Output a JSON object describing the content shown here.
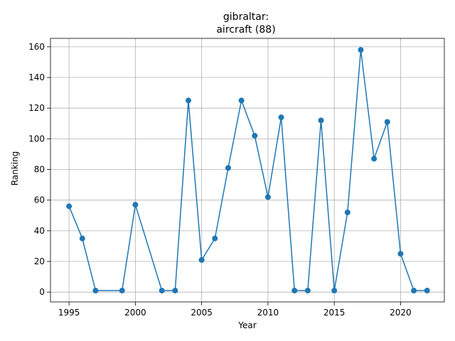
{
  "chart_data": {
    "type": "line",
    "title_line1": "gibraltar:",
    "title_line2": "aircraft (88)",
    "xlabel": "Year",
    "ylabel": "Ranking",
    "xlim": [
      1993.6,
      2023.3
    ],
    "ylim": [
      -6.4,
      165.5
    ],
    "xticks": [
      1995,
      2000,
      2005,
      2010,
      2015,
      2020
    ],
    "yticks": [
      0,
      20,
      40,
      60,
      80,
      100,
      120,
      140,
      160
    ],
    "grid": true,
    "marker": "circle",
    "color": "#1f77b4",
    "series": [
      {
        "x": [
          1995,
          1996,
          1997,
          1999,
          2000,
          2002,
          2003,
          2004,
          2005,
          2006,
          2007,
          2008,
          2009,
          2010,
          2011,
          2012,
          2013,
          2014,
          2015,
          2016,
          2017,
          2018,
          2019,
          2020,
          2021,
          2022
        ],
        "y": [
          56,
          35,
          1,
          1,
          57,
          1,
          1,
          125,
          21,
          35,
          81,
          125,
          102,
          62,
          114,
          1,
          1,
          112,
          1,
          52,
          158,
          87,
          111,
          25,
          1,
          1
        ]
      }
    ]
  }
}
